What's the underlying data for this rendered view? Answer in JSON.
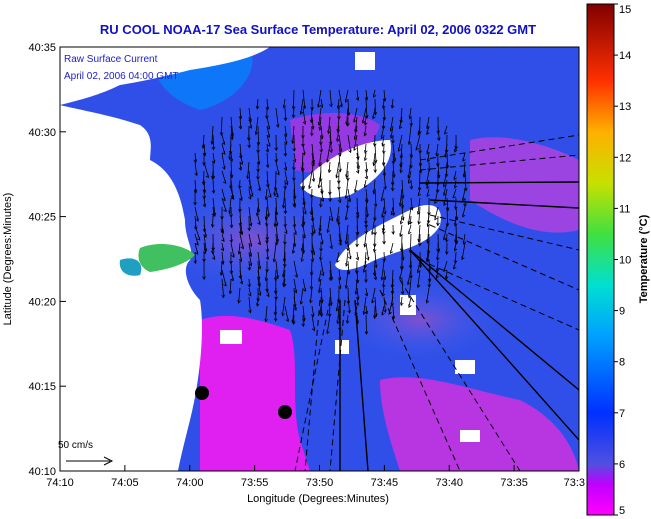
{
  "chart_data": {
    "type": "heatmap",
    "title": "RU COOL  NOAA-17  Sea Surface Temperature:  April 02, 2006 0322 GMT",
    "xlabel": "Longitude (Degrees:Minutes)",
    "ylabel": "Latitude (Degrees:Minutes)",
    "colorbar_label": "Temperature (°C)",
    "legend_lines": [
      "Raw Surface Current",
      "April 02, 2006 04:00 GMT"
    ],
    "scale_label": "50 cm/s",
    "x_ticks": [
      "74:10",
      "74:05",
      "74:00",
      "73:55",
      "73:50",
      "73:45",
      "73:40",
      "73:35",
      "73:3"
    ],
    "y_ticks": [
      "40:35",
      "40:30",
      "40:25",
      "40:20",
      "40:15",
      "40:10"
    ],
    "x_range_minutes_west": [
      10,
      -30
    ],
    "y_range_minutes_north": [
      10,
      35
    ],
    "colorbar_ticks": [
      5,
      6,
      7,
      8,
      9,
      10,
      11,
      12,
      13,
      14,
      15
    ],
    "colorbar_range": [
      5,
      15
    ],
    "colormap": [
      "#ff00ff",
      "#4040e0",
      "#0050ff",
      "#00b0ff",
      "#00e0c0",
      "#40e040",
      "#c0e000",
      "#ffc000",
      "#ff5000",
      "#e00000",
      "#900000"
    ],
    "land_color": "#ffffff",
    "no_data_color": "#ffffff",
    "radar_sites": 2
  }
}
